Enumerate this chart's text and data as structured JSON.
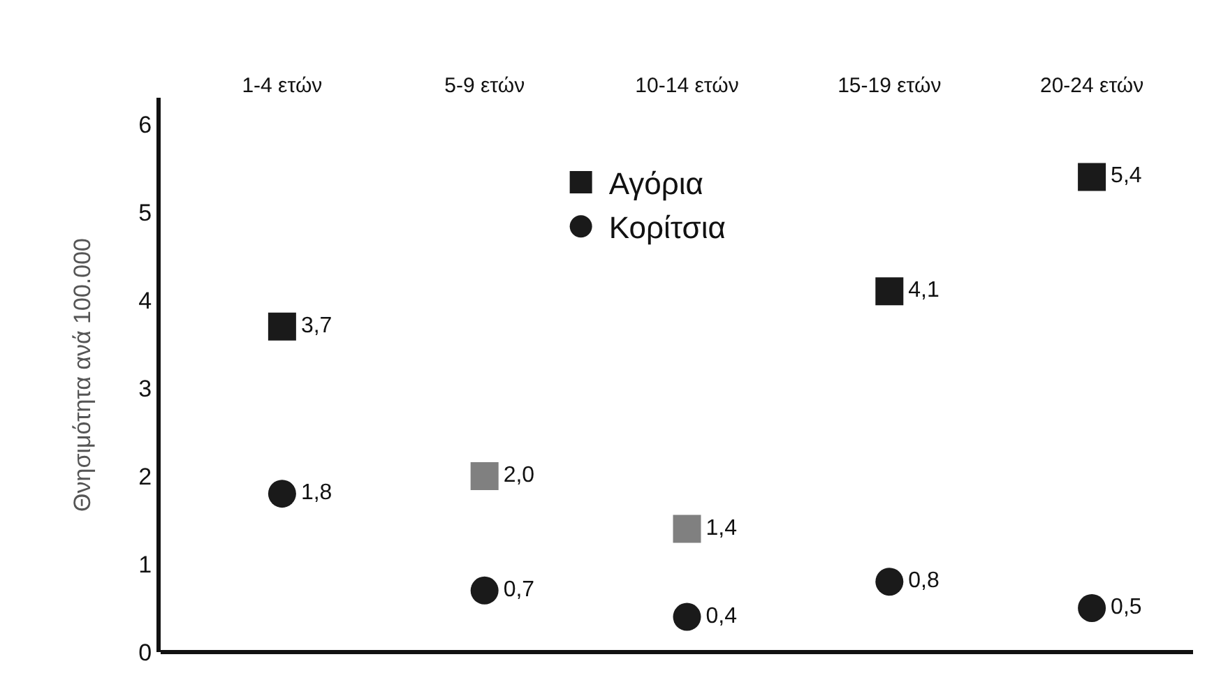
{
  "chart_data": {
    "type": "scatter",
    "ylabel": "Θνησιμότητα ανά 100.000",
    "categories": [
      "1-4 ετών",
      "5-9 ετών",
      "10-14 ετών",
      "15-19 ετών",
      "20-24 ετών"
    ],
    "series": [
      {
        "name": "Αγόρια",
        "colors": [
          "#1a1a1a",
          "#808080",
          "#808080",
          "#1a1a1a",
          "#1a1a1a"
        ],
        "marker": "square",
        "values": [
          3.7,
          2.0,
          1.4,
          4.1,
          5.4
        ],
        "value_labels": [
          "3,7",
          "2,0",
          "1,4",
          "4,1",
          "5,4"
        ]
      },
      {
        "name": "Κορίτσια",
        "color": "#1a1a1a",
        "marker": "circle",
        "values": [
          1.8,
          0.7,
          0.4,
          0.8,
          0.5
        ],
        "value_labels": [
          "1,8",
          "0,7",
          "0,4",
          "0,8",
          "0,5"
        ]
      }
    ],
    "ylim": [
      0,
      6.3
    ],
    "yticks": [
      0,
      1,
      2,
      3,
      4,
      5,
      6
    ],
    "grid": false,
    "legend": "top"
  }
}
